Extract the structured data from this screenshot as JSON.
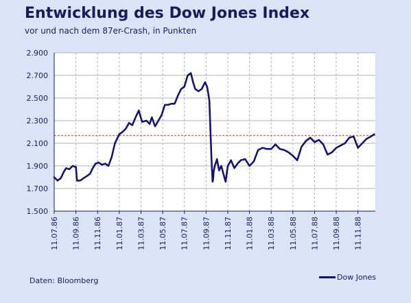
{
  "chart_data": {
    "type": "line",
    "title": "Entwicklung des Dow Jones Index",
    "subtitle": "vor und nach dem 87er-Crash, in Punkten",
    "source": "Daten: Bloomberg",
    "xlabel": "",
    "ylabel": "",
    "y_ticks": [
      "1.500",
      "1.700",
      "1.900",
      "2.100",
      "2.300",
      "2.500",
      "2.700",
      "2.900"
    ],
    "y_tick_values": [
      1500,
      1700,
      1900,
      2100,
      2300,
      2500,
      2700,
      2900
    ],
    "ylim": [
      1500,
      2900
    ],
    "x_ticks": [
      "11.07.86",
      "11.09.86",
      "11.11.86",
      "11.01.87",
      "11.03.87",
      "11.05.87",
      "11.07.87",
      "11.09.87",
      "11.11.87",
      "11.01.88",
      "11.03.88",
      "11.05.88",
      "11.07.88",
      "11.09.88",
      "11.11.88"
    ],
    "x_tick_months": [
      0,
      2,
      4,
      6,
      8,
      10,
      12,
      14,
      16,
      18,
      20,
      22,
      24,
      26,
      28
    ],
    "xlim_months": [
      0,
      29.6
    ],
    "reference_line": {
      "value": 2168,
      "style": "dashed",
      "color": "#c0392b"
    },
    "grid": {
      "y": "solid",
      "x": "dashed"
    },
    "legend_position": "bottom-right",
    "series": [
      {
        "name": "Dow Jones",
        "color": "#141470",
        "x": [
          0,
          0.3,
          0.6,
          0.9,
          1.1,
          1.4,
          1.7,
          2.0,
          2.1,
          2.4,
          2.7,
          3.0,
          3.3,
          3.5,
          3.8,
          4.1,
          4.4,
          4.7,
          5.0,
          5.3,
          5.6,
          6.0,
          6.3,
          6.6,
          6.9,
          7.2,
          7.5,
          7.8,
          8.1,
          8.5,
          8.8,
          9.0,
          9.3,
          9.6,
          9.9,
          10.2,
          10.5,
          10.8,
          11.1,
          11.4,
          11.7,
          12.0,
          12.3,
          12.6,
          12.8,
          13.0,
          13.3,
          13.6,
          13.9,
          14.1,
          14.3,
          14.5,
          14.6,
          14.65,
          14.7,
          14.8,
          14.9,
          15.0,
          15.2,
          15.4,
          15.6,
          15.8,
          16.0,
          16.3,
          16.6,
          16.9,
          17.2,
          17.6,
          18.0,
          18.4,
          18.8,
          19.2,
          19.6,
          20.0,
          20.4,
          20.8,
          21.2,
          21.6,
          22.0,
          22.4,
          22.8,
          23.2,
          23.6,
          24.0,
          24.4,
          24.8,
          25.2,
          25.6,
          26.0,
          26.4,
          26.8,
          27.2,
          27.6,
          28.0,
          28.4,
          28.8,
          29.2,
          29.5
        ],
        "y": [
          1800,
          1770,
          1790,
          1850,
          1880,
          1870,
          1900,
          1890,
          1770,
          1770,
          1790,
          1810,
          1830,
          1870,
          1920,
          1930,
          1910,
          1920,
          1900,
          1980,
          2100,
          2180,
          2200,
          2230,
          2280,
          2260,
          2330,
          2390,
          2290,
          2300,
          2270,
          2330,
          2250,
          2300,
          2350,
          2440,
          2440,
          2450,
          2450,
          2520,
          2580,
          2600,
          2700,
          2720,
          2640,
          2580,
          2560,
          2580,
          2640,
          2600,
          2480,
          1950,
          1760,
          1780,
          1850,
          1900,
          1930,
          1960,
          1860,
          1900,
          1830,
          1760,
          1900,
          1950,
          1880,
          1920,
          1950,
          1960,
          1900,
          1940,
          2040,
          2060,
          2050,
          2050,
          2090,
          2050,
          2040,
          2020,
          1990,
          1950,
          2070,
          2120,
          2150,
          2110,
          2130,
          2090,
          2000,
          2020,
          2060,
          2080,
          2100,
          2150,
          2160,
          2060,
          2100,
          2140,
          2160,
          2180
        ]
      }
    ]
  }
}
